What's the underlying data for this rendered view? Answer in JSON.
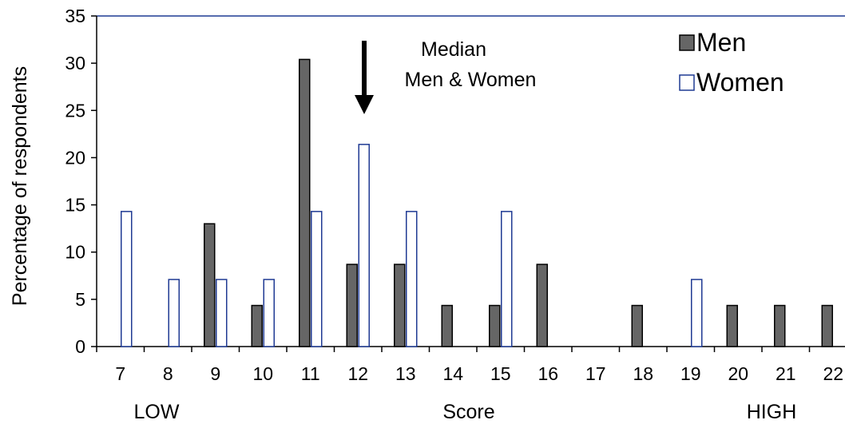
{
  "chart_data": {
    "type": "bar",
    "title": "",
    "xlabel": "Score",
    "ylabel": "Percentage of respondents",
    "x_low_label": "LOW",
    "x_high_label": "HIGH",
    "categories": [
      "7",
      "8",
      "9",
      "10",
      "11",
      "12",
      "13",
      "14",
      "15",
      "16",
      "17",
      "18",
      "19",
      "20",
      "21",
      "22"
    ],
    "ylim": [
      0,
      35
    ],
    "yticks": [
      "0",
      "5",
      "10",
      "15",
      "20",
      "25",
      "30",
      "35"
    ],
    "grid": false,
    "legend_position": "top-right",
    "series": [
      {
        "name": "Men",
        "color": "#666666",
        "style": "filled",
        "values": [
          0,
          0,
          13,
          4.35,
          30.4,
          8.7,
          8.7,
          4.35,
          4.35,
          8.7,
          0,
          4.35,
          0,
          4.35,
          4.35,
          4.35
        ]
      },
      {
        "name": "Women",
        "color": "#1f3a93",
        "style": "outline",
        "values": [
          14.3,
          7.1,
          7.1,
          7.1,
          14.3,
          21.4,
          14.3,
          0,
          14.3,
          0,
          0,
          0,
          7.1,
          0,
          0,
          0
        ]
      }
    ],
    "annotation": {
      "line1": "Median",
      "line2": "Men & Women",
      "at_category": "12",
      "arrow": "down-arrow"
    }
  }
}
